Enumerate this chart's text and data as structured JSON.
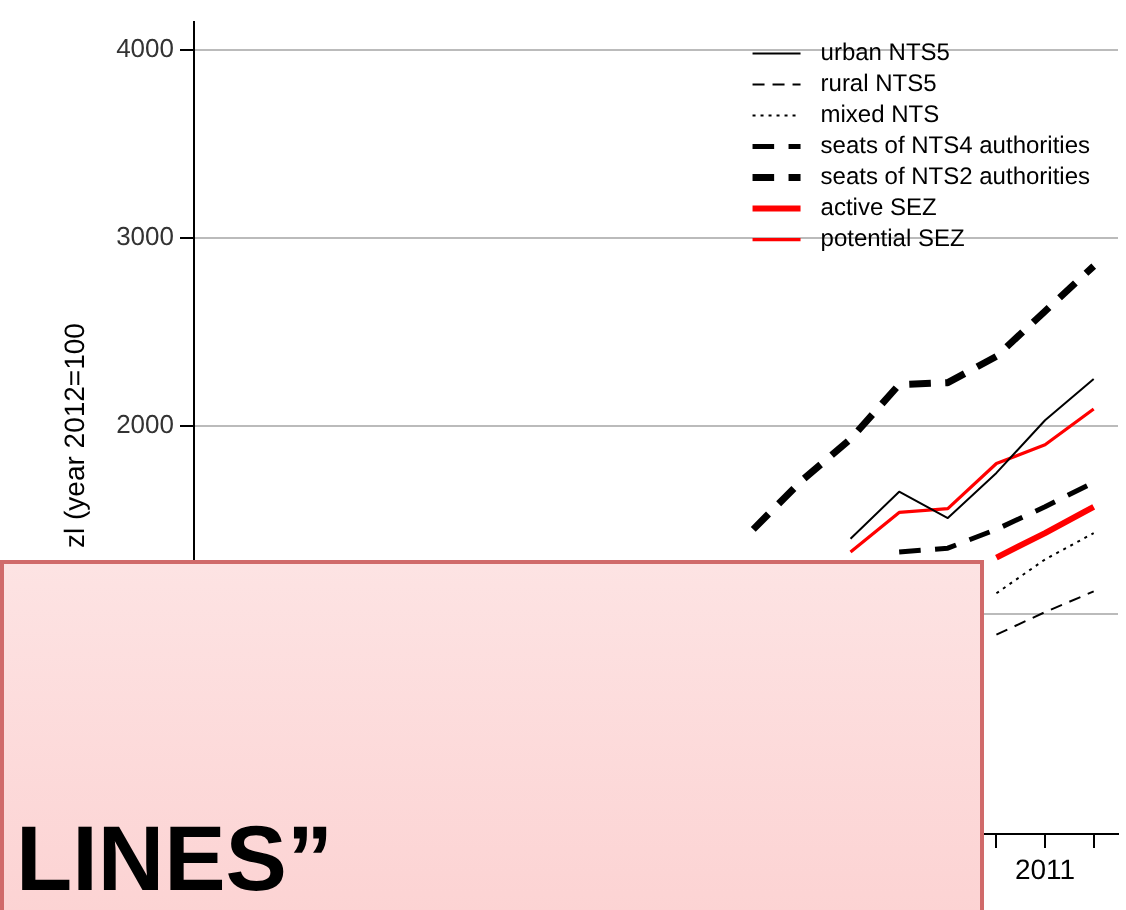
{
  "chart_data": {
    "type": "line",
    "ylabel": "zl (year 2012=100",
    "annotations": [
      "LINES”"
    ],
    "categories": [
      null,
      null,
      null,
      null,
      null,
      null,
      null,
      null,
      null,
      null,
      null,
      null,
      null,
      null,
      null,
      null,
      null,
      "2011",
      null
    ],
    "ylim": [
      -170,
      4150
    ],
    "yticks": [
      {
        "value": 1000,
        "label": null
      },
      2000,
      3000,
      4000
    ],
    "grid": "y",
    "legend": "top right",
    "marker": "none",
    "series": [
      {
        "name": "urban NTS5",
        "color": "#000000",
        "line_style": "solid",
        "values": [
          null,
          null,
          null,
          null,
          null,
          null,
          null,
          null,
          null,
          null,
          null,
          null,
          null,
          1400,
          1650,
          1510,
          1750,
          2030,
          2250
        ]
      },
      {
        "name": "rural NTS5",
        "color": "#000000",
        "line_style": "dashed",
        "values": [
          null,
          null,
          null,
          null,
          null,
          null,
          null,
          null,
          null,
          null,
          null,
          null,
          null,
          null,
          null,
          null,
          890,
          1010,
          1120
        ]
      },
      {
        "name": "mixed NTS",
        "color": "#000000",
        "line_style": "dotted",
        "values": [
          null,
          null,
          null,
          null,
          null,
          null,
          null,
          null,
          null,
          null,
          null,
          null,
          null,
          null,
          null,
          null,
          1110,
          1290,
          1430
        ]
      },
      {
        "name": "seats of NTS4 authorities",
        "color": "#000000",
        "line_style": "dashed",
        "values": [
          null,
          null,
          null,
          null,
          null,
          null,
          null,
          null,
          null,
          null,
          null,
          null,
          null,
          null,
          1330,
          1350,
          1450,
          1570,
          1700
        ]
      },
      {
        "name": "seats of NTS2 authorities",
        "color": "#000000",
        "line_style": "dashed",
        "values": [
          null,
          null,
          null,
          null,
          null,
          null,
          null,
          null,
          null,
          null,
          null,
          1450,
          1710,
          1930,
          2220,
          2230,
          2370,
          2610,
          2850
        ]
      },
      {
        "name": "active SEZ",
        "color": "#ff0000",
        "line_style": "solid",
        "values": [
          null,
          null,
          null,
          null,
          null,
          null,
          null,
          null,
          null,
          null,
          null,
          null,
          null,
          null,
          null,
          null,
          1300,
          1430,
          1570
        ]
      },
      {
        "name": "potential SEZ",
        "color": "#ff0000",
        "line_style": "solid",
        "values": [
          null,
          null,
          null,
          null,
          null,
          null,
          null,
          null,
          null,
          null,
          null,
          null,
          null,
          1330,
          1540,
          1560,
          1800,
          1900,
          2090
        ]
      }
    ]
  }
}
